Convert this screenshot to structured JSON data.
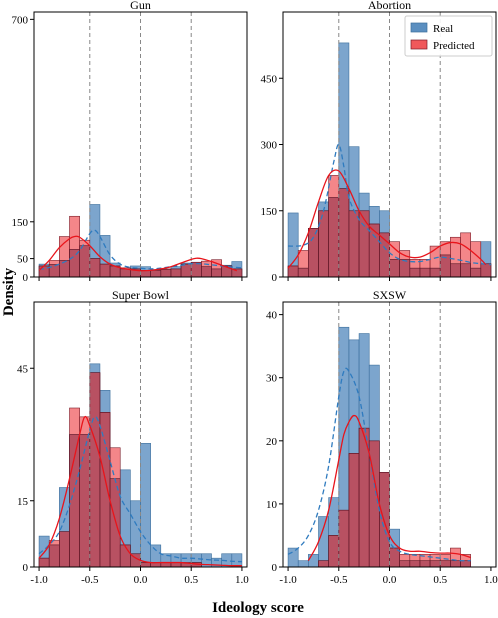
{
  "figure": {
    "ylabel": "Density",
    "xlabel": "Ideology score",
    "legend": {
      "placement": "top-right of Abortion panel",
      "entries": [
        "Real",
        "Predicted"
      ]
    }
  },
  "colors": {
    "real": "#5b8fc0",
    "real_edge": "#3b6e9c",
    "predicted": "#f0585b",
    "overlap": "#a63a4f",
    "real_kde": "#2f7bbf",
    "pred_kde": "#e8141b",
    "dashed": "#888888"
  },
  "chart_data": [
    {
      "type": "histogram",
      "title": "Gun",
      "xlim": [
        -1.05,
        1.05
      ],
      "ylim": [
        0,
        720
      ],
      "yticks": [
        0,
        50,
        150,
        700
      ],
      "xticks": [],
      "vlines": [
        -0.5,
        0,
        0.5
      ],
      "bins": [
        -1.0,
        -0.9,
        -0.8,
        -0.7,
        -0.6,
        -0.5,
        -0.4,
        -0.3,
        -0.2,
        -0.1,
        0.0,
        0.1,
        0.2,
        0.3,
        0.4,
        0.5,
        0.6,
        0.7,
        0.8,
        0.9,
        1.0
      ],
      "series": [
        {
          "name": "Real",
          "values": [
            35,
            34,
            45,
            75,
            85,
            197,
            113,
            38,
            22,
            30,
            28,
            18,
            20,
            28,
            38,
            40,
            28,
            22,
            32,
            42
          ]
        },
        {
          "name": "Predicted",
          "values": [
            30,
            45,
            110,
            165,
            100,
            50,
            35,
            30,
            25,
            22,
            18,
            20,
            22,
            22,
            35,
            40,
            43,
            47,
            30,
            22
          ]
        }
      ],
      "kde": [
        {
          "name": "Real",
          "x": [
            -1.0,
            -0.85,
            -0.7,
            -0.6,
            -0.5,
            -0.45,
            -0.4,
            -0.3,
            -0.2,
            -0.1,
            0.0,
            0.1,
            0.2,
            0.3,
            0.4,
            0.5,
            0.6,
            0.7,
            0.8,
            0.9,
            1.0
          ],
          "y": [
            20,
            30,
            48,
            72,
            118,
            127,
            110,
            60,
            35,
            26,
            24,
            22,
            24,
            28,
            32,
            36,
            36,
            33,
            30,
            27,
            25
          ]
        },
        {
          "name": "Predicted",
          "x": [
            -1.0,
            -0.9,
            -0.8,
            -0.7,
            -0.65,
            -0.6,
            -0.5,
            -0.4,
            -0.3,
            -0.2,
            -0.1,
            0.0,
            0.1,
            0.2,
            0.3,
            0.4,
            0.5,
            0.55,
            0.6,
            0.7,
            0.8,
            0.9,
            0.95
          ],
          "y": [
            18,
            45,
            80,
            104,
            110,
            108,
            85,
            55,
            35,
            25,
            20,
            17,
            18,
            22,
            28,
            38,
            48,
            51,
            50,
            42,
            32,
            22,
            17
          ]
        }
      ]
    },
    {
      "type": "histogram",
      "title": "Abortion",
      "xlim": [
        -1.05,
        1.05
      ],
      "ylim": [
        0,
        600
      ],
      "yticks": [
        0,
        150,
        300,
        450
      ],
      "xticks": [],
      "vlines": [
        -0.5,
        0,
        0.5
      ],
      "bins": [
        -1.0,
        -0.9,
        -0.8,
        -0.7,
        -0.6,
        -0.5,
        -0.4,
        -0.3,
        -0.2,
        -0.1,
        0.0,
        0.1,
        0.2,
        0.3,
        0.4,
        0.5,
        0.6,
        0.7,
        0.8,
        0.9,
        1.0
      ],
      "series": [
        {
          "name": "Real",
          "values": [
            145,
            20,
            110,
            170,
            180,
            530,
            295,
            190,
            160,
            150,
            40,
            40,
            20,
            20,
            20,
            50,
            30,
            30,
            20,
            80
          ]
        },
        {
          "name": "Predicted",
          "values": [
            25,
            60,
            110,
            150,
            230,
            200,
            150,
            150,
            120,
            100,
            80,
            60,
            40,
            40,
            70,
            80,
            90,
            100,
            80,
            30
          ]
        }
      ],
      "kde": [
        {
          "name": "Real",
          "x": [
            -1.0,
            -0.85,
            -0.75,
            -0.65,
            -0.55,
            -0.5,
            -0.45,
            -0.4,
            -0.3,
            -0.2,
            -0.1,
            0.0,
            0.1,
            0.2,
            0.3,
            0.4,
            0.5,
            0.6,
            0.7,
            0.8,
            0.9,
            1.0
          ],
          "y": [
            70,
            72,
            90,
            150,
            260,
            300,
            250,
            180,
            130,
            105,
            80,
            55,
            40,
            35,
            35,
            40,
            45,
            42,
            38,
            33,
            30,
            28
          ]
        },
        {
          "name": "Predicted",
          "x": [
            -1.0,
            -0.9,
            -0.8,
            -0.7,
            -0.6,
            -0.5,
            -0.4,
            -0.3,
            -0.2,
            -0.1,
            0.0,
            0.1,
            0.2,
            0.3,
            0.4,
            0.5,
            0.6,
            0.7,
            0.8,
            0.9,
            0.95
          ],
          "y": [
            20,
            50,
            100,
            170,
            230,
            240,
            200,
            150,
            115,
            95,
            75,
            55,
            45,
            45,
            55,
            70,
            78,
            75,
            60,
            40,
            28
          ]
        }
      ]
    },
    {
      "type": "histogram",
      "title": "Super Bowl",
      "xlim": [
        -1.05,
        1.05
      ],
      "ylim": [
        0,
        60
      ],
      "yticks": [
        0,
        15,
        45
      ],
      "xticks": [
        "-1.0",
        "-0.5",
        "0.0",
        "0.5",
        "1.0"
      ],
      "xtick_values": [
        -1.0,
        -0.5,
        0.0,
        0.5,
        1.0
      ],
      "vlines": [
        -0.5,
        0,
        0.5
      ],
      "bins": [
        -1.0,
        -0.9,
        -0.8,
        -0.7,
        -0.6,
        -0.5,
        -0.4,
        -0.3,
        -0.2,
        -0.1,
        0.0,
        0.1,
        0.2,
        0.3,
        0.4,
        0.5,
        0.6,
        0.7,
        0.8,
        0.9,
        1.0
      ],
      "series": [
        {
          "name": "Real",
          "values": [
            7,
            5,
            18,
            30,
            30,
            46,
            40,
            20,
            22,
            15,
            28,
            5,
            3,
            3,
            3,
            3,
            3,
            2,
            3,
            3
          ]
        },
        {
          "name": "Predicted",
          "values": [
            2,
            6,
            8,
            36,
            34,
            44,
            35,
            27,
            5,
            3,
            1,
            1,
            1,
            1,
            1,
            1,
            0,
            0,
            0,
            0
          ]
        }
      ],
      "kde": [
        {
          "name": "Real",
          "x": [
            -1.0,
            -0.9,
            -0.8,
            -0.7,
            -0.6,
            -0.5,
            -0.45,
            -0.4,
            -0.3,
            -0.2,
            -0.1,
            0.0,
            0.1,
            0.2,
            0.3,
            0.4,
            0.5,
            0.6,
            0.7,
            0.8,
            0.9,
            1.0
          ],
          "y": [
            3,
            5,
            8,
            14,
            22,
            31,
            34,
            32,
            24,
            16,
            12,
            8,
            5,
            3,
            2.5,
            2,
            2,
            1.8,
            1.6,
            1.5,
            1.3,
            1.2
          ]
        },
        {
          "name": "Predicted",
          "x": [
            -1.0,
            -0.9,
            -0.8,
            -0.7,
            -0.6,
            -0.55,
            -0.5,
            -0.4,
            -0.3,
            -0.2,
            -0.1,
            0.0,
            0.1,
            0.2,
            0.3,
            0.4,
            0.5,
            0.6,
            0.7,
            0.8,
            0.9,
            1.0
          ],
          "y": [
            2,
            5,
            11,
            20,
            30,
            34,
            32,
            25,
            15,
            7,
            3,
            1.5,
            1,
            1,
            1,
            1,
            0.8,
            0.6,
            0.5,
            0.4,
            0.3,
            0.3
          ]
        }
      ]
    },
    {
      "type": "histogram",
      "title": "SXSW",
      "xlim": [
        -1.05,
        1.05
      ],
      "ylim": [
        0,
        42
      ],
      "yticks": [
        0,
        10,
        20,
        30,
        40
      ],
      "xticks": [
        "-1.0",
        "-0.5",
        "0.0",
        "0.5",
        "1.0"
      ],
      "xtick_values": [
        -1.0,
        -0.5,
        0.0,
        0.5,
        1.0
      ],
      "vlines": [
        -0.5,
        0,
        0.5
      ],
      "bins": [
        -1.0,
        -0.9,
        -0.8,
        -0.7,
        -0.6,
        -0.5,
        -0.4,
        -0.3,
        -0.2,
        -0.1,
        0.0,
        0.1,
        0.2,
        0.3,
        0.4,
        0.5,
        0.6,
        0.7,
        0.8
      ],
      "series": [
        {
          "name": "Real",
          "values": [
            3,
            1,
            2,
            8,
            11,
            38,
            36,
            37,
            32,
            15,
            6,
            1,
            1,
            1,
            1,
            1,
            1,
            1
          ]
        },
        {
          "name": "Predicted",
          "values": [
            0,
            0,
            0,
            1,
            5,
            9,
            18,
            22,
            20,
            15,
            3,
            2,
            2,
            2,
            2,
            2,
            3,
            2
          ]
        }
      ],
      "kde": [
        {
          "name": "Real",
          "x": [
            -1.0,
            -0.9,
            -0.8,
            -0.7,
            -0.6,
            -0.5,
            -0.45,
            -0.4,
            -0.3,
            -0.2,
            -0.1,
            0.0,
            0.1,
            0.2,
            0.3,
            0.4,
            0.5,
            0.6,
            0.7,
            0.8
          ],
          "y": [
            2,
            3,
            5,
            9,
            16,
            27,
            31,
            31,
            27,
            18,
            9,
            4,
            2.5,
            2,
            1.8,
            1.6,
            1.4,
            1.2,
            1,
            1
          ]
        },
        {
          "name": "Predicted",
          "x": [
            -0.8,
            -0.7,
            -0.6,
            -0.5,
            -0.45,
            -0.4,
            -0.35,
            -0.3,
            -0.2,
            -0.1,
            0.0,
            0.1,
            0.2,
            0.3,
            0.4,
            0.5,
            0.6,
            0.7,
            0.8
          ],
          "y": [
            1,
            4,
            9,
            17,
            21,
            23,
            24,
            23,
            18,
            10,
            5,
            3,
            2.5,
            2.5,
            2.3,
            2.2,
            2.2,
            2.0,
            1.5
          ]
        }
      ]
    }
  ]
}
